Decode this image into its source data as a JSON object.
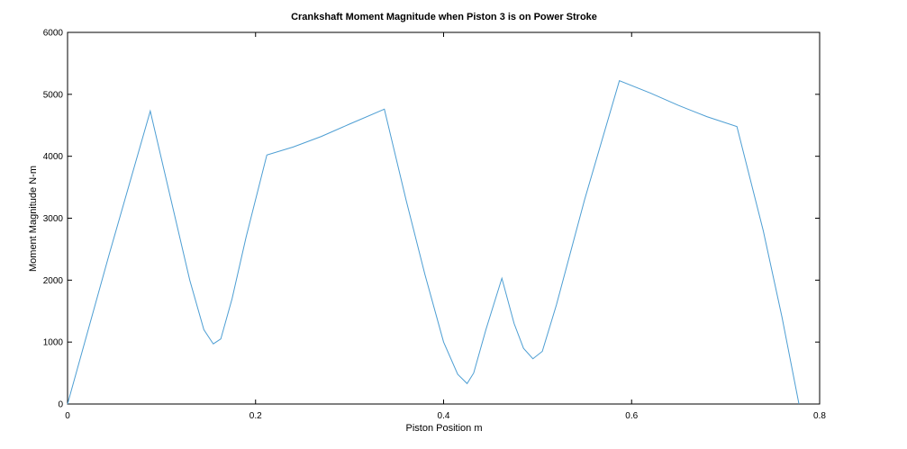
{
  "chart_data": {
    "type": "line",
    "title": "Crankshaft Moment Magnitude when Piston 3 is on Power Stroke",
    "xlabel": "Piston Position m",
    "ylabel": "Moment Magnitude N-m",
    "xlim": [
      0,
      0.8
    ],
    "ylim": [
      0,
      6000
    ],
    "xticks": [
      0,
      0.2,
      0.4,
      0.6,
      0.8
    ],
    "yticks": [
      0,
      1000,
      2000,
      3000,
      4000,
      5000,
      6000
    ],
    "xtick_labels": [
      "0",
      "0.2",
      "0.4",
      "0.6",
      "0.8"
    ],
    "ytick_labels": [
      "0",
      "1000",
      "2000",
      "3000",
      "4000",
      "5000",
      "6000"
    ],
    "grid": false,
    "line_color": "#4d9ed3",
    "series": [
      {
        "x": [
          0,
          0.044,
          0.088,
          0.11,
          0.13,
          0.145,
          0.155,
          0.163,
          0.175,
          0.19,
          0.212,
          0.24,
          0.27,
          0.3,
          0.337,
          0.36,
          0.38,
          0.4,
          0.415,
          0.425,
          0.432,
          0.445,
          0.462,
          0.475,
          0.485,
          0.495,
          0.505,
          0.52,
          0.55,
          0.587,
          0.62,
          0.65,
          0.68,
          0.712,
          0.74,
          0.76,
          0.778
        ],
        "y": [
          0,
          2400,
          4730,
          3300,
          2000,
          1200,
          970,
          1050,
          1700,
          2700,
          4020,
          4150,
          4320,
          4520,
          4760,
          3300,
          2100,
          1000,
          480,
          330,
          500,
          1200,
          2030,
          1300,
          900,
          730,
          850,
          1600,
          3300,
          5220,
          5020,
          4820,
          4640,
          4480,
          2800,
          1400,
          0
        ]
      }
    ]
  }
}
